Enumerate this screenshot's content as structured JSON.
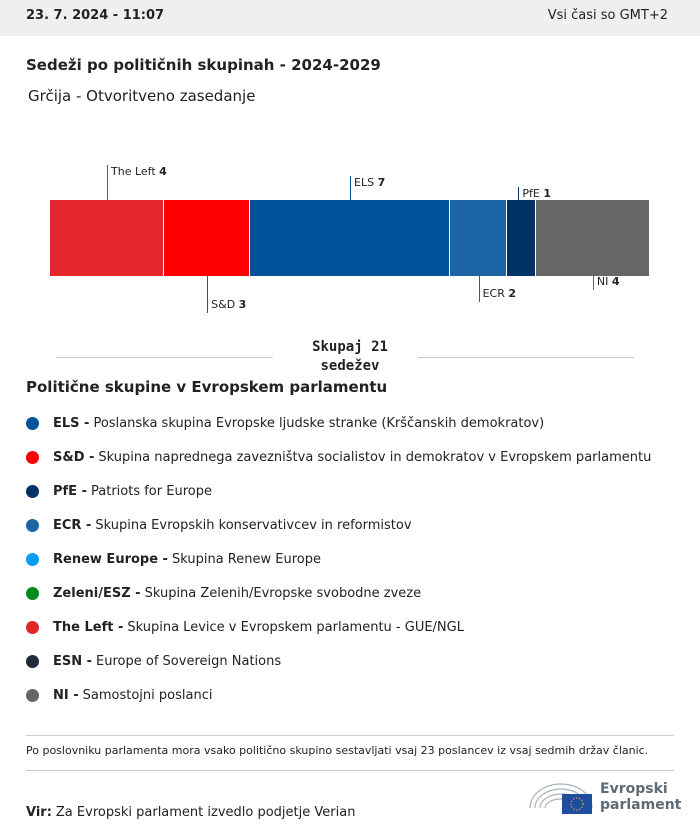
{
  "header": {
    "datetime": "23. 7. 2024 - 11:07",
    "timezone": "Vsi časi so GMT+2"
  },
  "title": "Sedeži po političnih skupinah - 2024-2029",
  "subtitle": "Grčija - Otvoritveno zasedanje",
  "chart_data": {
    "type": "bar",
    "orientation": "stacked-horizontal",
    "categories": [
      "The Left",
      "S&D",
      "ELS",
      "ECR",
      "PfE",
      "NI"
    ],
    "values": [
      4,
      3,
      7,
      2,
      1,
      4
    ],
    "colors": [
      "#e3262b",
      "#ff0000",
      "#00529b",
      "#1c64a3",
      "#003265",
      "#666666"
    ],
    "label_positions": [
      "top",
      "bottom",
      "top",
      "bottom",
      "top",
      "bottom"
    ],
    "total_label": "Skupaj 21",
    "total_unit": "sedežev",
    "total": 21
  },
  "legend": {
    "title": "Politične skupine v Evropskem parlamentu",
    "items": [
      {
        "abbr": "ELS -",
        "name": "Poslanska skupina Evropske ljudske stranke (Krščanskih demokratov)",
        "color": "#00529b"
      },
      {
        "abbr": "S&D -",
        "name": "Skupina naprednega zavezništva socialistov in demokratov v Evropskem parlamentu",
        "color": "#ff0000"
      },
      {
        "abbr": "PfE -",
        "name": "Patriots for Europe",
        "color": "#003265"
      },
      {
        "abbr": "ECR -",
        "name": "Skupina Evropskih konservativcev in reformistov",
        "color": "#1c64a3"
      },
      {
        "abbr": "Renew Europe -",
        "name": "Skupina Renew Europe",
        "color": "#0a9cf0"
      },
      {
        "abbr": "Zeleni/ESZ -",
        "name": "Skupina Zelenih/Evropske svobodne zveze",
        "color": "#008a1e"
      },
      {
        "abbr": "The Left -",
        "name": "Skupina Levice v Evropskem parlamentu - GUE/NGL",
        "color": "#e3262b"
      },
      {
        "abbr": "ESN -",
        "name": "Europe of Sovereign Nations",
        "color": "#1e2b3a"
      },
      {
        "abbr": "NI -",
        "name": "Samostojni poslanci",
        "color": "#666666"
      }
    ]
  },
  "note": "Po poslovniku parlamenta mora vsako politično skupino sestavljati vsaj 23 poslancev iz vsaj sedmih držav članic.",
  "source": {
    "label": "Vir:",
    "text": "Za Evropski parlament izvedlo podjetje Verian"
  },
  "logo": {
    "line1": "Evropski",
    "line2": "parlament"
  }
}
